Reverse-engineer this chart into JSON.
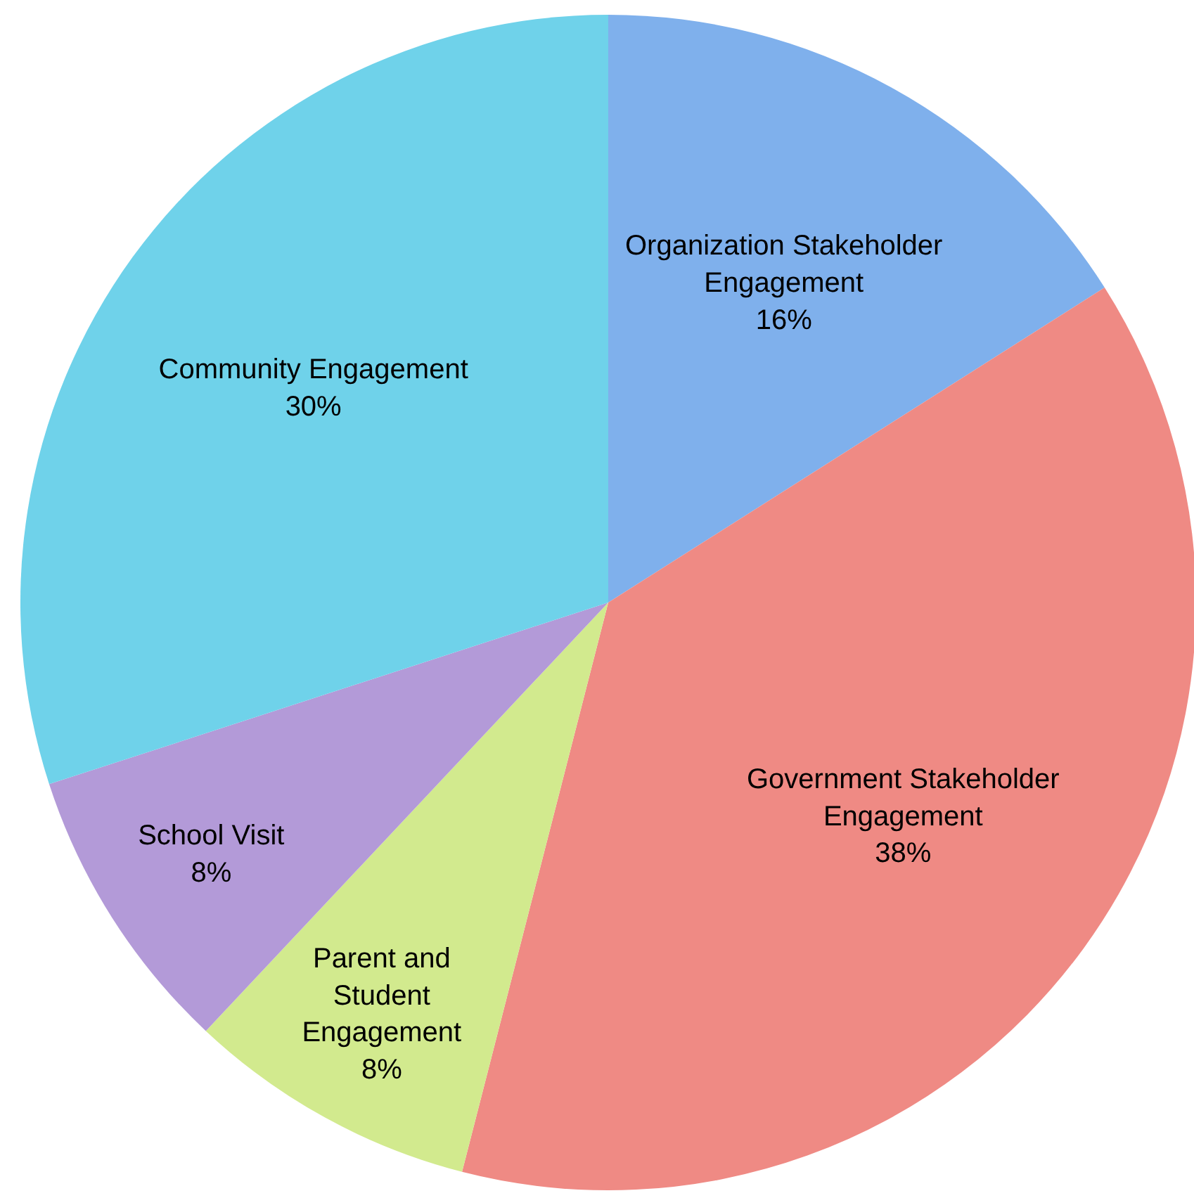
{
  "chart_data": {
    "type": "pie",
    "categories": [
      "Organization Stakeholder Engagement",
      "Government Stakeholder Engagement",
      "Parent and Student Engagement",
      "School Visit",
      "Community Engagement"
    ],
    "values": [
      16,
      38,
      8,
      8,
      30
    ],
    "colors": [
      "#7fb0ec",
      "#ef8a84",
      "#d2ea8e",
      "#b39ad8",
      "#6fd2ea"
    ],
    "value_labels": [
      "16%",
      "38%",
      "8%",
      "8%",
      "30%"
    ]
  }
}
